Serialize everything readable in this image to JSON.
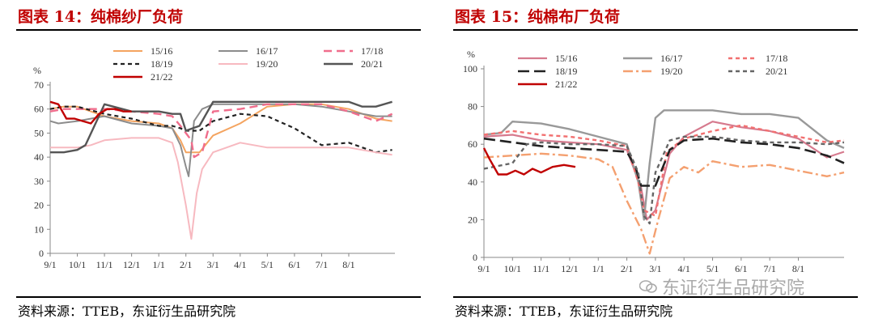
{
  "left": {
    "title": "图表 14：纯棉纱厂负荷",
    "source": "资料来源：TTEB，东证衍生品研究院",
    "chart_data": {
      "type": "line",
      "ylabel": "%",
      "ylim": [
        0,
        70
      ],
      "yticks": [
        0,
        10,
        20,
        30,
        40,
        50,
        60,
        70
      ],
      "xticks": [
        "9/1",
        "10/1",
        "11/1",
        "12/1",
        "1/1",
        "2/1",
        "3/1",
        "4/1",
        "5/1",
        "6/1",
        "7/1",
        "8/1"
      ],
      "x_range": [
        0,
        12.7
      ],
      "legend_rows": [
        [
          "15/16",
          "16/17",
          "17/18"
        ],
        [
          "18/19",
          "19/20",
          "20/21"
        ],
        [
          "21/22"
        ]
      ],
      "series": [
        {
          "name": "15/16",
          "color": "#f4a460",
          "dash": "none",
          "width": 2,
          "x": [
            0,
            0.5,
            1,
            1.5,
            2,
            3,
            4,
            4.5,
            4.8,
            5.0,
            5.5,
            6.0,
            7.0,
            8.0,
            9.0,
            10.0,
            11.0,
            12.0,
            12.6
          ],
          "y": [
            60,
            61,
            61,
            59,
            57,
            55,
            54,
            52,
            47,
            42,
            42,
            49,
            54,
            61,
            62,
            62,
            60,
            56,
            55
          ]
        },
        {
          "name": "16/17",
          "color": "#8c8c8c",
          "dash": "none",
          "width": 2,
          "x": [
            0,
            0.3,
            1,
            2,
            3,
            4,
            4.5,
            4.8,
            5.0,
            5.1,
            5.3,
            5.6,
            6.0,
            7.0,
            8.0,
            9.0,
            10.0,
            11.0,
            12.0,
            12.6
          ],
          "y": [
            55,
            54,
            55,
            57,
            54,
            53,
            52,
            45,
            36,
            32,
            55,
            60,
            62,
            62,
            62,
            62,
            61,
            59,
            57,
            57
          ]
        },
        {
          "name": "17/18",
          "color": "#f06d8c",
          "dash": "10,6",
          "width": 2.4,
          "x": [
            0,
            0.5,
            1,
            2,
            3,
            4,
            4.5,
            4.8,
            5.0,
            5.2,
            5.3,
            5.6,
            6.0,
            7.0,
            8.0,
            9.0,
            10.0,
            11.0,
            12.0,
            12.6
          ],
          "y": [
            59,
            60,
            60,
            60,
            59,
            58,
            57,
            53,
            50,
            47,
            40,
            42,
            59,
            60,
            62,
            62,
            62,
            59,
            55,
            58
          ]
        },
        {
          "name": "18/19",
          "color": "#222222",
          "dash": "5,4",
          "width": 2.2,
          "x": [
            0,
            0.5,
            1,
            2,
            3,
            4,
            4.5,
            4.8,
            5.0,
            5.5,
            6.0,
            7.0,
            8.0,
            9.0,
            10.0,
            11.0,
            12.0,
            12.6
          ],
          "y": [
            60,
            61,
            61,
            58,
            56,
            53,
            53,
            52,
            51,
            51,
            55,
            58,
            57,
            52,
            45,
            46,
            42,
            43
          ]
        },
        {
          "name": "19/20",
          "color": "#f7b9c0",
          "dash": "none",
          "width": 2,
          "x": [
            0,
            0.5,
            1,
            1.5,
            2,
            3,
            4,
            4.5,
            4.7,
            5.0,
            5.2,
            5.4,
            5.6,
            6.0,
            7.0,
            8.0,
            9.0,
            10.0,
            11.0,
            12.0,
            12.6
          ],
          "y": [
            44,
            44,
            44,
            45,
            47,
            48,
            48,
            46,
            38,
            20,
            6,
            25,
            35,
            42,
            46,
            44,
            44,
            44,
            44,
            42,
            41
          ]
        },
        {
          "name": "20/21",
          "color": "#555555",
          "dash": "none",
          "width": 2.4,
          "x": [
            0,
            0.5,
            1,
            1.3,
            2,
            3,
            4,
            4.5,
            4.8,
            5.0,
            5.5,
            6.0,
            7.0,
            8.0,
            9.0,
            10.0,
            11.0,
            11.5,
            12.0,
            12.6
          ],
          "y": [
            42,
            42,
            43,
            45,
            62,
            59,
            59,
            58,
            58,
            51,
            53,
            63,
            63,
            63,
            63,
            63,
            63,
            61,
            61,
            63
          ]
        },
        {
          "name": "21/22",
          "color": "#c00000",
          "dash": "none",
          "width": 2.4,
          "x": [
            0,
            0.3,
            0.6,
            0.9,
            1.2,
            1.5,
            1.8,
            2.1,
            2.4,
            2.7,
            3.0
          ],
          "y": [
            63,
            62,
            56,
            56,
            55,
            54,
            58,
            60,
            60,
            59,
            59
          ]
        }
      ]
    }
  },
  "right": {
    "title": "图表 15：纯棉布厂负荷",
    "source": "资料来源：TTEB，东证衍生品研究院",
    "watermark": "东证衍生品研究院",
    "chart_data": {
      "type": "line",
      "ylabel": "%",
      "ylim": [
        0,
        100
      ],
      "yticks": [
        0,
        20,
        40,
        60,
        80,
        100
      ],
      "xticks": [
        "9/1",
        "10/1",
        "11/1",
        "12/1",
        "1/1",
        "2/1",
        "3/1",
        "4/1",
        "5/1",
        "6/1",
        "7/1",
        "8/1"
      ],
      "x_range": [
        0,
        12.6
      ],
      "legend_rows": [
        [
          "15/16",
          "16/17",
          "17/18"
        ],
        [
          "18/19",
          "19/20",
          "20/21"
        ],
        [
          "21/22"
        ]
      ],
      "series": [
        {
          "name": "15/16",
          "color": "#d67a8e",
          "dash": "none",
          "width": 2.2,
          "x": [
            0,
            1,
            2,
            3,
            4,
            5,
            5.5,
            5.7,
            6.0,
            6.5,
            7,
            8,
            9,
            10,
            11,
            12,
            12.6
          ],
          "y": [
            64,
            65,
            62,
            61,
            60,
            57,
            37,
            20,
            25,
            55,
            64,
            72,
            69,
            67,
            63,
            53,
            56
          ]
        },
        {
          "name": "16/17",
          "color": "#999999",
          "dash": "none",
          "width": 2.4,
          "x": [
            0,
            0.6,
            1,
            2,
            3,
            4,
            5,
            5.4,
            5.6,
            5.8,
            6.0,
            6.3,
            7,
            8,
            9,
            10,
            11,
            11.5,
            12,
            12.6
          ],
          "y": [
            65,
            66,
            72,
            71,
            68,
            64,
            60,
            40,
            20,
            50,
            74,
            78,
            78,
            78,
            76,
            76,
            74,
            68,
            62,
            58
          ]
        },
        {
          "name": "17/18",
          "color": "#f27070",
          "dash": "5,4",
          "width": 2.4,
          "x": [
            0,
            0.5,
            1,
            2,
            3,
            4,
            5,
            5.4,
            5.6,
            6.0,
            6.4,
            7,
            8,
            9,
            10,
            11,
            12,
            12.6
          ],
          "y": [
            65,
            66,
            67,
            65,
            64,
            62,
            59,
            40,
            25,
            22,
            56,
            63,
            67,
            70,
            67,
            64,
            61,
            62
          ]
        },
        {
          "name": "18/19",
          "color": "#222222",
          "dash": "14,6",
          "width": 2.6,
          "x": [
            0,
            1,
            2,
            3,
            4,
            5,
            5.3,
            5.5,
            6.0,
            6.5,
            7,
            8,
            9,
            10,
            11,
            12,
            12.6
          ],
          "y": [
            63,
            61,
            59,
            58,
            57,
            56,
            48,
            38,
            38,
            57,
            62,
            63,
            61,
            60,
            58,
            54,
            50
          ]
        },
        {
          "name": "19/20",
          "color": "#f4a070",
          "dash": "12,4,3,4",
          "width": 2.4,
          "x": [
            0,
            1,
            2,
            3,
            4,
            4.5,
            5,
            5.5,
            5.8,
            6.1,
            6.5,
            7,
            7.5,
            8,
            9,
            10,
            11,
            12,
            12.6
          ],
          "y": [
            53,
            54,
            55,
            54,
            52,
            48,
            30,
            15,
            2,
            20,
            42,
            48,
            45,
            51,
            48,
            49,
            46,
            43,
            45
          ]
        },
        {
          "name": "20/21",
          "color": "#666666",
          "dash": "5,4",
          "width": 2.4,
          "x": [
            0,
            1,
            1.5,
            2,
            3,
            4,
            5,
            5.4,
            5.6,
            5.8,
            6.0,
            6.5,
            7,
            8,
            9,
            10,
            11,
            12,
            12.6
          ],
          "y": [
            47,
            50,
            60,
            61,
            60,
            60,
            59,
            45,
            22,
            18,
            45,
            62,
            64,
            64,
            62,
            61,
            61,
            60,
            61
          ]
        },
        {
          "name": "21/22",
          "color": "#c00000",
          "dash": "none",
          "width": 2.4,
          "x": [
            0,
            0.2,
            0.5,
            0.8,
            1.1,
            1.4,
            1.7,
            2.0,
            2.4,
            2.8,
            3.2
          ],
          "y": [
            58,
            52,
            44,
            44,
            46,
            44,
            47,
            45,
            48,
            49,
            48
          ]
        }
      ]
    }
  }
}
